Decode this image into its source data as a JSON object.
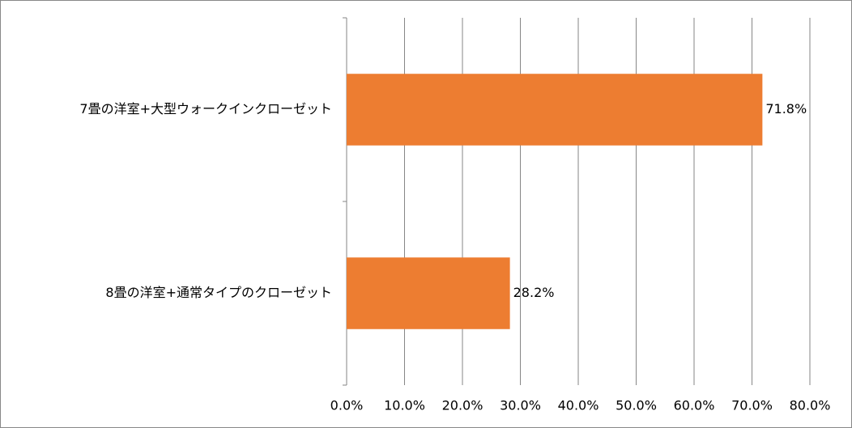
{
  "chart_data": {
    "type": "bar",
    "orientation": "horizontal",
    "categories": [
      "7畳の洋室+大型ウォークインクローゼット",
      "8畳の洋室+通常タイプのクローゼット"
    ],
    "values": [
      71.8,
      28.2
    ],
    "value_labels": [
      "71.8%",
      "28.2%"
    ],
    "color": "#ed7d31",
    "xlim": [
      0,
      80
    ],
    "xticks": [
      {
        "value": 0,
        "label": "0.0%"
      },
      {
        "value": 10,
        "label": "10.0%"
      },
      {
        "value": 20,
        "label": "20.0%"
      },
      {
        "value": 30,
        "label": "30.0%"
      },
      {
        "value": 40,
        "label": "40.0%"
      },
      {
        "value": 50,
        "label": "50.0%"
      },
      {
        "value": 60,
        "label": "60.0%"
      },
      {
        "value": 70,
        "label": "70.0%"
      },
      {
        "value": 80,
        "label": "80.0%"
      }
    ],
    "grid": true
  }
}
